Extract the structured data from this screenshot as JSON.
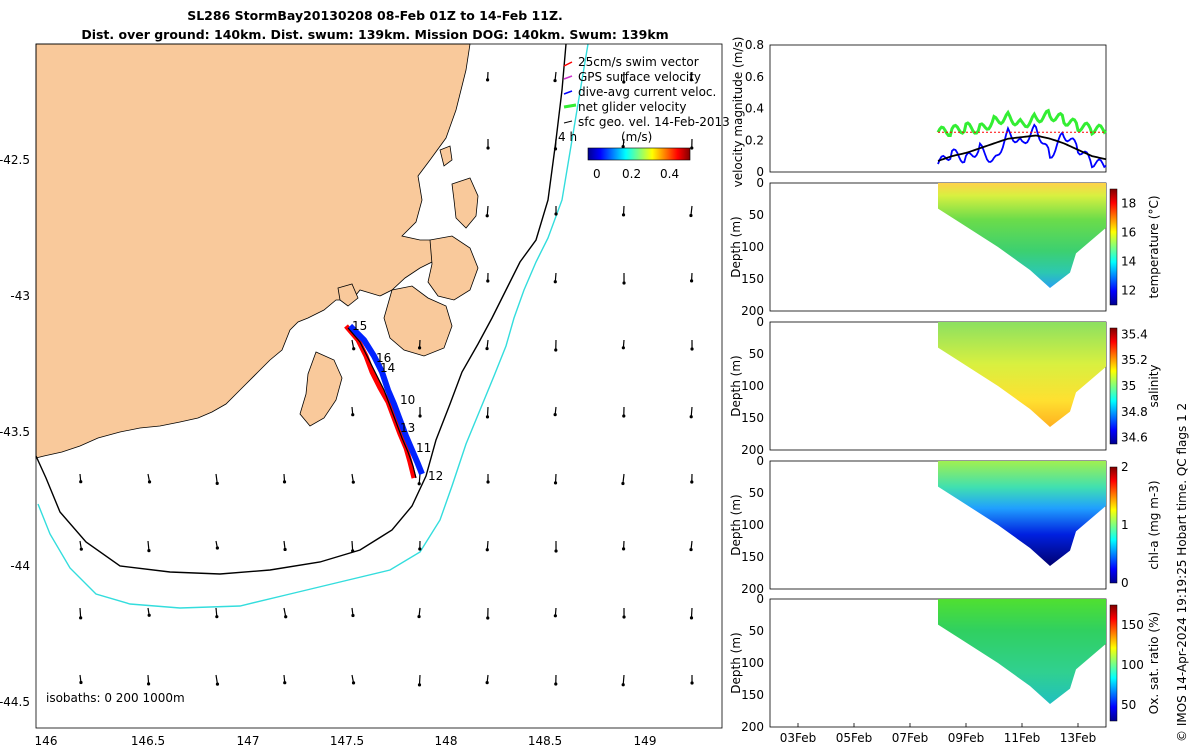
{
  "title": {
    "line1": "SL286 StormBay20130208 08-Feb 01Z to 14-Feb 11Z.",
    "line2": "Dist. over ground: 140km. Dist. swum: 139km. Mission DOG: 140km. Swum: 139km"
  },
  "map": {
    "legend": [
      {
        "label": "25cm/s swim vector",
        "color": "#ff0000"
      },
      {
        "label": "GPS surface velocity",
        "color": "#cc33cc"
      },
      {
        "label": "dive-avg current veloc.",
        "color": "#0000ff"
      },
      {
        "label": "net glider velocity",
        "color": "#33ee33"
      },
      {
        "label": "sfc geo. vel. 14-Feb-2013",
        "color": "#000000"
      }
    ],
    "colorbar_title": "(m/s)",
    "colorbar_ticks": [
      "0",
      "0.2",
      "0.4"
    ],
    "label_4h": "4 h",
    "isobaths_label": "isobaths: 0   200  1000m",
    "glider_labels": [
      "15",
      "16",
      "14",
      "10",
      "13",
      "11",
      "12"
    ],
    "x_ticks": [
      "146",
      "146.5",
      "147",
      "147.5",
      "148",
      "148.5",
      "149"
    ],
    "y_ticks": [
      "-42.5",
      "-43",
      "-43.5",
      "-44",
      "-44.5"
    ],
    "land_color": "#f9c99b"
  },
  "chart_data": [
    {
      "type": "line",
      "panel": "velocity",
      "ylabel": "velocity magnitude (m/s)",
      "ylim": [
        0,
        0.8
      ],
      "y_ticks": [
        "0",
        "0.2",
        "0.4",
        "0.6",
        "0.8"
      ],
      "xlim_days": [
        "02-Feb-2013",
        "14-Feb-2013"
      ],
      "series": [
        {
          "color": "#33ee33",
          "x": [
            "08-Feb",
            "08.5-Feb",
            "09-Feb",
            "09.5-Feb",
            "10-Feb",
            "10.5-Feb",
            "11-Feb",
            "11.5-Feb",
            "12-Feb",
            "12.5-Feb",
            "13-Feb",
            "13.5-Feb",
            "14-Feb"
          ],
          "values": [
            0.25,
            0.26,
            0.28,
            0.27,
            0.32,
            0.35,
            0.3,
            0.34,
            0.36,
            0.33,
            0.29,
            0.27,
            0.26
          ]
        },
        {
          "color": "#0000ff",
          "x": [
            "08-Feb",
            "08.5-Feb",
            "09-Feb",
            "09.5-Feb",
            "10-Feb",
            "10.5-Feb",
            "11-Feb",
            "11.5-Feb",
            "12-Feb",
            "12.5-Feb",
            "13-Feb",
            "13.5-Feb",
            "14-Feb"
          ],
          "values": [
            0.05,
            0.12,
            0.08,
            0.15,
            0.06,
            0.25,
            0.18,
            0.28,
            0.1,
            0.24,
            0.15,
            0.06,
            0.04
          ]
        },
        {
          "color": "#000000",
          "x": [
            "08-Feb",
            "08.5-Feb",
            "09-Feb",
            "09.5-Feb",
            "10-Feb",
            "10.5-Feb",
            "11-Feb",
            "11.5-Feb",
            "12-Feb",
            "12.5-Feb",
            "13-Feb",
            "13.5-Feb",
            "14-Feb"
          ],
          "values": [
            0.07,
            0.1,
            0.12,
            0.15,
            0.18,
            0.21,
            0.22,
            0.23,
            0.21,
            0.18,
            0.14,
            0.1,
            0.08
          ]
        },
        {
          "color": "#ff0000",
          "x": [
            "08-Feb",
            "09-Feb",
            "10-Feb",
            "11-Feb",
            "12-Feb",
            "13-Feb",
            "14-Feb"
          ],
          "values": [
            0.25,
            0.25,
            0.25,
            0.25,
            0.25,
            0.25,
            0.25
          ]
        }
      ]
    },
    {
      "type": "heatmap",
      "panel": "temperature",
      "ylabel": "Depth (m)",
      "colorbar_label": "temperature (°C)",
      "y_ticks": [
        "0",
        "50",
        "100",
        "150",
        "200"
      ],
      "colorbar_ticks": [
        "12",
        "14",
        "16",
        "18"
      ],
      "clim": [
        11,
        19
      ]
    },
    {
      "type": "heatmap",
      "panel": "salinity",
      "ylabel": "Depth (m)",
      "colorbar_label": "salinity",
      "y_ticks": [
        "0",
        "50",
        "100",
        "150",
        "200"
      ],
      "colorbar_ticks": [
        "34.6",
        "34.8",
        "35",
        "35.2",
        "35.4"
      ],
      "clim": [
        34.55,
        35.45
      ]
    },
    {
      "type": "heatmap",
      "panel": "chl-a",
      "ylabel": "Depth (m)",
      "colorbar_label": "chl-a (mg m-3)",
      "y_ticks": [
        "0",
        "50",
        "100",
        "150",
        "200"
      ],
      "colorbar_ticks": [
        "0",
        "1",
        "2"
      ],
      "clim": [
        0,
        2
      ]
    },
    {
      "type": "heatmap",
      "panel": "oxygen",
      "ylabel": "Depth (m)",
      "colorbar_label": "Ox. sat. ratio (%)",
      "y_ticks": [
        "0",
        "50",
        "100",
        "150",
        "200"
      ],
      "colorbar_ticks": [
        "50",
        "100",
        "150"
      ],
      "clim": [
        30,
        175
      ]
    }
  ],
  "time_axis": {
    "ticks": [
      "03Feb",
      "05Feb",
      "07Feb",
      "09Feb",
      "11Feb",
      "13Feb"
    ]
  },
  "footer": "© IMOS 14-Apr-2024 19:19:25 Hobart time. QC flags 1  2"
}
